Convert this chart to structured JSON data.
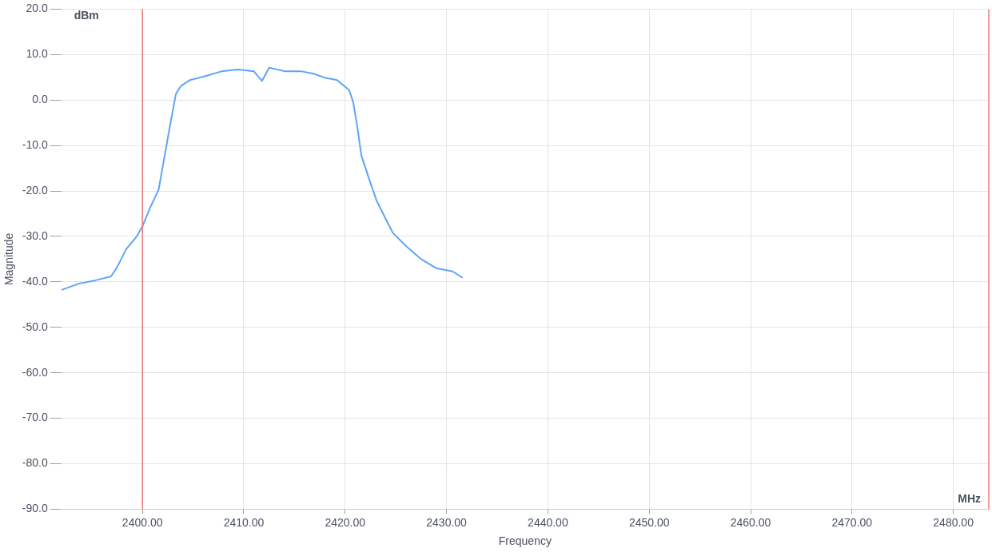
{
  "chart_data": {
    "type": "line",
    "xlabel": "Frequency",
    "ylabel": "Magnitude",
    "annotations": [
      "dBm",
      "MHz"
    ],
    "series": [
      {
        "color": "#5ea4f8",
        "x": [
          2392.0,
          2393.7,
          2395.3,
          2396.9,
          2397.5,
          2398.4,
          2399.4,
          2400.0,
          2400.8,
          2401.6,
          2402.2,
          2402.7,
          2403.3,
          2403.8,
          2404.7,
          2406.3,
          2407.8,
          2409.4,
          2411.0,
          2411.8,
          2412.5,
          2414.1,
          2415.7,
          2416.9,
          2418.0,
          2419.2,
          2420.4,
          2420.8,
          2421.2,
          2421.6,
          2422.4,
          2423.1,
          2423.9,
          2424.7,
          2425.9,
          2427.5,
          2429.0,
          2430.6,
          2431.6
        ],
        "values": [
          -41.8,
          -40.4,
          -39.7,
          -38.8,
          -36.8,
          -32.8,
          -30.1,
          -27.8,
          -23.5,
          -19.7,
          -12.2,
          -5.9,
          1.3,
          3.1,
          4.4,
          5.3,
          6.3,
          6.7,
          6.3,
          4.2,
          7.1,
          6.3,
          6.3,
          5.8,
          4.9,
          4.4,
          2.2,
          -0.5,
          -5.9,
          -12.2,
          -17.6,
          -22.1,
          -25.7,
          -29.2,
          -31.9,
          -35.0,
          -37.0,
          -37.7,
          -39.1
        ]
      }
    ],
    "xlim": [
      2392,
      2483.5
    ],
    "xticks": [
      {
        "value": 2400,
        "label": "2400.00"
      },
      {
        "value": 2410,
        "label": "2410.00"
      },
      {
        "value": 2420,
        "label": "2420.00"
      },
      {
        "value": 2430,
        "label": "2430.00"
      },
      {
        "value": 2440,
        "label": "2440.00"
      },
      {
        "value": 2450,
        "label": "2450.00"
      },
      {
        "value": 2460,
        "label": "2460.00"
      },
      {
        "value": 2470,
        "label": "2470.00"
      },
      {
        "value": 2480,
        "label": "2480.00"
      }
    ],
    "ylim": [
      -90,
      20
    ],
    "yticks": [
      {
        "value": -90,
        "label": "-90.0"
      },
      {
        "value": -80,
        "label": "-80.0"
      },
      {
        "value": -70,
        "label": "-70.0"
      },
      {
        "value": -60,
        "label": "-60.0"
      },
      {
        "value": -50,
        "label": "-50.0"
      },
      {
        "value": -40,
        "label": "-40.0"
      },
      {
        "value": -30,
        "label": "-30.0"
      },
      {
        "value": -20,
        "label": "-20.0"
      },
      {
        "value": -10,
        "label": "-10.0"
      },
      {
        "value": 0,
        "label": "0.0"
      },
      {
        "value": 10,
        "label": "10.0"
      },
      {
        "value": 20,
        "label": "20.0"
      }
    ],
    "ref_lines": [
      {
        "axis": "x",
        "value": 2400,
        "color": "#f07878"
      },
      {
        "axis": "x",
        "value": 2483.5,
        "color": "#f07878"
      }
    ],
    "grid": true,
    "legend": false,
    "marker": "none",
    "line_style": "solid"
  }
}
